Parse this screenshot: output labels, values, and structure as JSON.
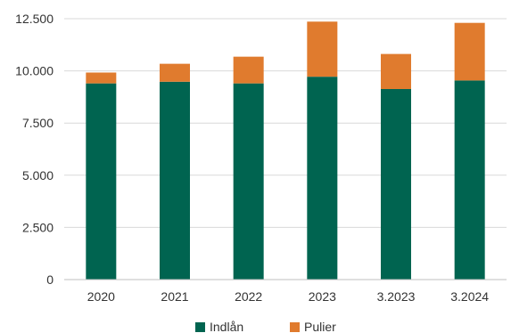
{
  "chart_data": {
    "type": "bar",
    "stacked": true,
    "categories": [
      "2020",
      "2021",
      "2022",
      "2023",
      "3.2023",
      "3.2024"
    ],
    "series": [
      {
        "name": "Indlån",
        "color": "#006450",
        "values": [
          9400,
          9480,
          9400,
          9720,
          9130,
          9540
        ]
      },
      {
        "name": "Pulier",
        "color": "#E07B2E",
        "values": [
          520,
          860,
          1280,
          2640,
          1680,
          2760
        ]
      }
    ],
    "ylim": [
      0,
      12500
    ],
    "yticks": [
      {
        "value": 0,
        "label": "0"
      },
      {
        "value": 2500,
        "label": "2.500"
      },
      {
        "value": 5000,
        "label": "5.000"
      },
      {
        "value": 7500,
        "label": "7.500"
      },
      {
        "value": 10000,
        "label": "10.000"
      },
      {
        "value": 12500,
        "label": "12.500"
      }
    ],
    "grid": true,
    "legend_position": "bottom"
  }
}
